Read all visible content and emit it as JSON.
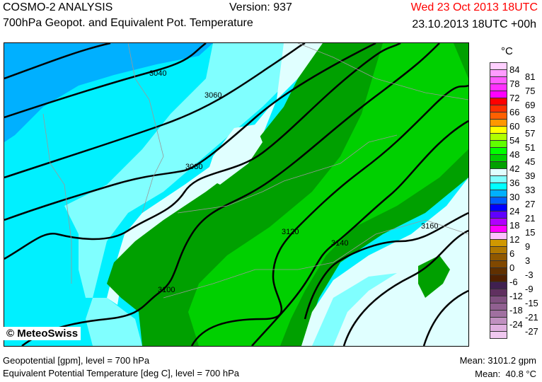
{
  "header": {
    "model": "COSMO-2 ANALYSIS",
    "version": "Version: 937",
    "valid_time": "Wed 23 Oct 2013 18UTC",
    "subtitle": "700hPa Geopot. and Equivalent Pot. Temperature",
    "run_time": "23.10.2013 18UTC +00h",
    "valid_time_color": "#ff0000"
  },
  "map": {
    "copyright": "© MeteoSwiss",
    "contour_labels": [
      "3040",
      "3060",
      "3080",
      "3100",
      "3120",
      "3140",
      "3160"
    ]
  },
  "legend": {
    "unit": "°C",
    "labels": [
      "84",
      "81",
      "78",
      "75",
      "72",
      "69",
      "66",
      "63",
      "60",
      "57",
      "54",
      "51",
      "48",
      "45",
      "42",
      "39",
      "36",
      "33",
      "30",
      "27",
      "24",
      "21",
      "18",
      "15",
      "12",
      "9",
      "6",
      "3",
      "0",
      "-3",
      "-6",
      "-9",
      "-12",
      "-15",
      "-18",
      "-21",
      "-24",
      "-27"
    ],
    "colors": [
      "#ffd0ff",
      "#ff9cff",
      "#ff5cff",
      "#ff30ff",
      "#ff00ff",
      "#ff0000",
      "#ff3000",
      "#ff6000",
      "#ff9800",
      "#ffff00",
      "#b0ff00",
      "#60ff00",
      "#00ff00",
      "#00d000",
      "#00a000",
      "#e0ffff",
      "#80ffff",
      "#00ffff",
      "#00b0ff",
      "#0060ff",
      "#0000ff",
      "#6000ff",
      "#b000ff",
      "#ff00ff",
      "#ffc0ff",
      "#d09800",
      "#b07800",
      "#905800",
      "#804800",
      "#603000",
      "#502000",
      "#402050",
      "#603060",
      "#805080",
      "#906090",
      "#a070a0",
      "#c090c0",
      "#e0b0e0",
      "#f0c8f0"
    ]
  },
  "footer": {
    "line1": "Geopotential [gpm], level = 700 hPa",
    "line2": "Equivalent Potential Temperature [deg C], level = 700 hPa",
    "mean1": "Mean: 3101.2 gpm",
    "mean2": "Mean:  40.8 °C"
  }
}
